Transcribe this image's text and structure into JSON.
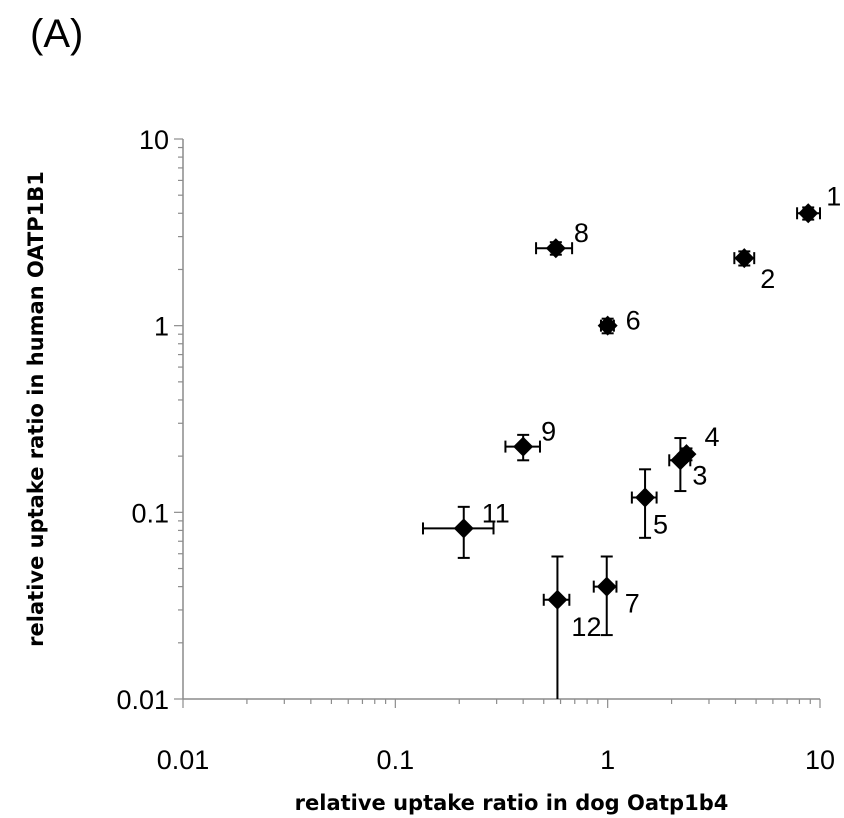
{
  "panel_label": "(A)",
  "chart_data": {
    "type": "scatter",
    "title": "",
    "xlabel": "relative uptake ratio in dog Oatp1b4",
    "ylabel": "relative uptake ratio in human OATP1B1",
    "x_scale": "log",
    "y_scale": "log",
    "xlim": [
      0.01,
      10
    ],
    "ylim": [
      0.01,
      10
    ],
    "x_ticks": [
      {
        "value": 0.01,
        "label": "0.01"
      },
      {
        "value": 0.1,
        "label": "0.1"
      },
      {
        "value": 1,
        "label": "1"
      },
      {
        "value": 10,
        "label": "10"
      }
    ],
    "y_ticks": [
      {
        "value": 0.01,
        "label": "0.01"
      },
      {
        "value": 0.1,
        "label": "0.1"
      },
      {
        "value": 1,
        "label": "1"
      },
      {
        "value": 10,
        "label": "10"
      }
    ],
    "grid": false,
    "marker": "diamond",
    "marker_color": "#000000",
    "points": [
      {
        "label": "1",
        "x": 8.8,
        "y": 4.0,
        "x_err": [
          7.8,
          10.0
        ],
        "y_err": [
          3.7,
          4.3
        ],
        "label_pos": "upper-right"
      },
      {
        "label": "2",
        "x": 4.4,
        "y": 2.3,
        "x_err": [
          3.95,
          4.9
        ],
        "y_err": [
          2.1,
          2.5
        ],
        "label_pos": "lower-right"
      },
      {
        "label": "3",
        "x": 2.2,
        "y": 0.19,
        "x_err": [
          1.95,
          2.45
        ],
        "y_err": [
          0.13,
          0.25
        ],
        "label_pos": "lower-right"
      },
      {
        "label": "4",
        "x": 2.35,
        "y": 0.205,
        "x_err": [
          2.25,
          2.45
        ],
        "y_err": [
          0.19,
          0.22
        ],
        "label_pos": "upper-right"
      },
      {
        "label": "5",
        "x": 1.5,
        "y": 0.12,
        "x_err": [
          1.3,
          1.7
        ],
        "y_err": [
          0.073,
          0.17
        ],
        "label_pos": "lower-right"
      },
      {
        "label": "6",
        "x": 1.0,
        "y": 1.0,
        "x_err": [
          0.93,
          1.07
        ],
        "y_err": [
          0.91,
          1.09
        ],
        "label_pos": "right"
      },
      {
        "label": "7",
        "x": 0.99,
        "y": 0.04,
        "x_err": [
          0.86,
          1.1
        ],
        "y_err": [
          0.022,
          0.058
        ],
        "label_pos": "lower-right"
      },
      {
        "label": "8",
        "x": 0.57,
        "y": 2.6,
        "x_err": [
          0.46,
          0.68
        ],
        "y_err": [
          2.4,
          2.8
        ],
        "label_pos": "upper-right"
      },
      {
        "label": "9",
        "x": 0.4,
        "y": 0.225,
        "x_err": [
          0.33,
          0.48
        ],
        "y_err": [
          0.19,
          0.26
        ],
        "label_pos": "upper-right"
      },
      {
        "label": "11",
        "x": 0.21,
        "y": 0.082,
        "x_err": [
          0.135,
          0.29
        ],
        "y_err": [
          0.057,
          0.107
        ],
        "label_pos": "upper-right"
      },
      {
        "label": "12",
        "x": 0.58,
        "y": 0.034,
        "x_err": [
          0.5,
          0.66
        ],
        "y_err": [
          0.01,
          0.058
        ],
        "label_pos": "lower-right"
      }
    ]
  }
}
